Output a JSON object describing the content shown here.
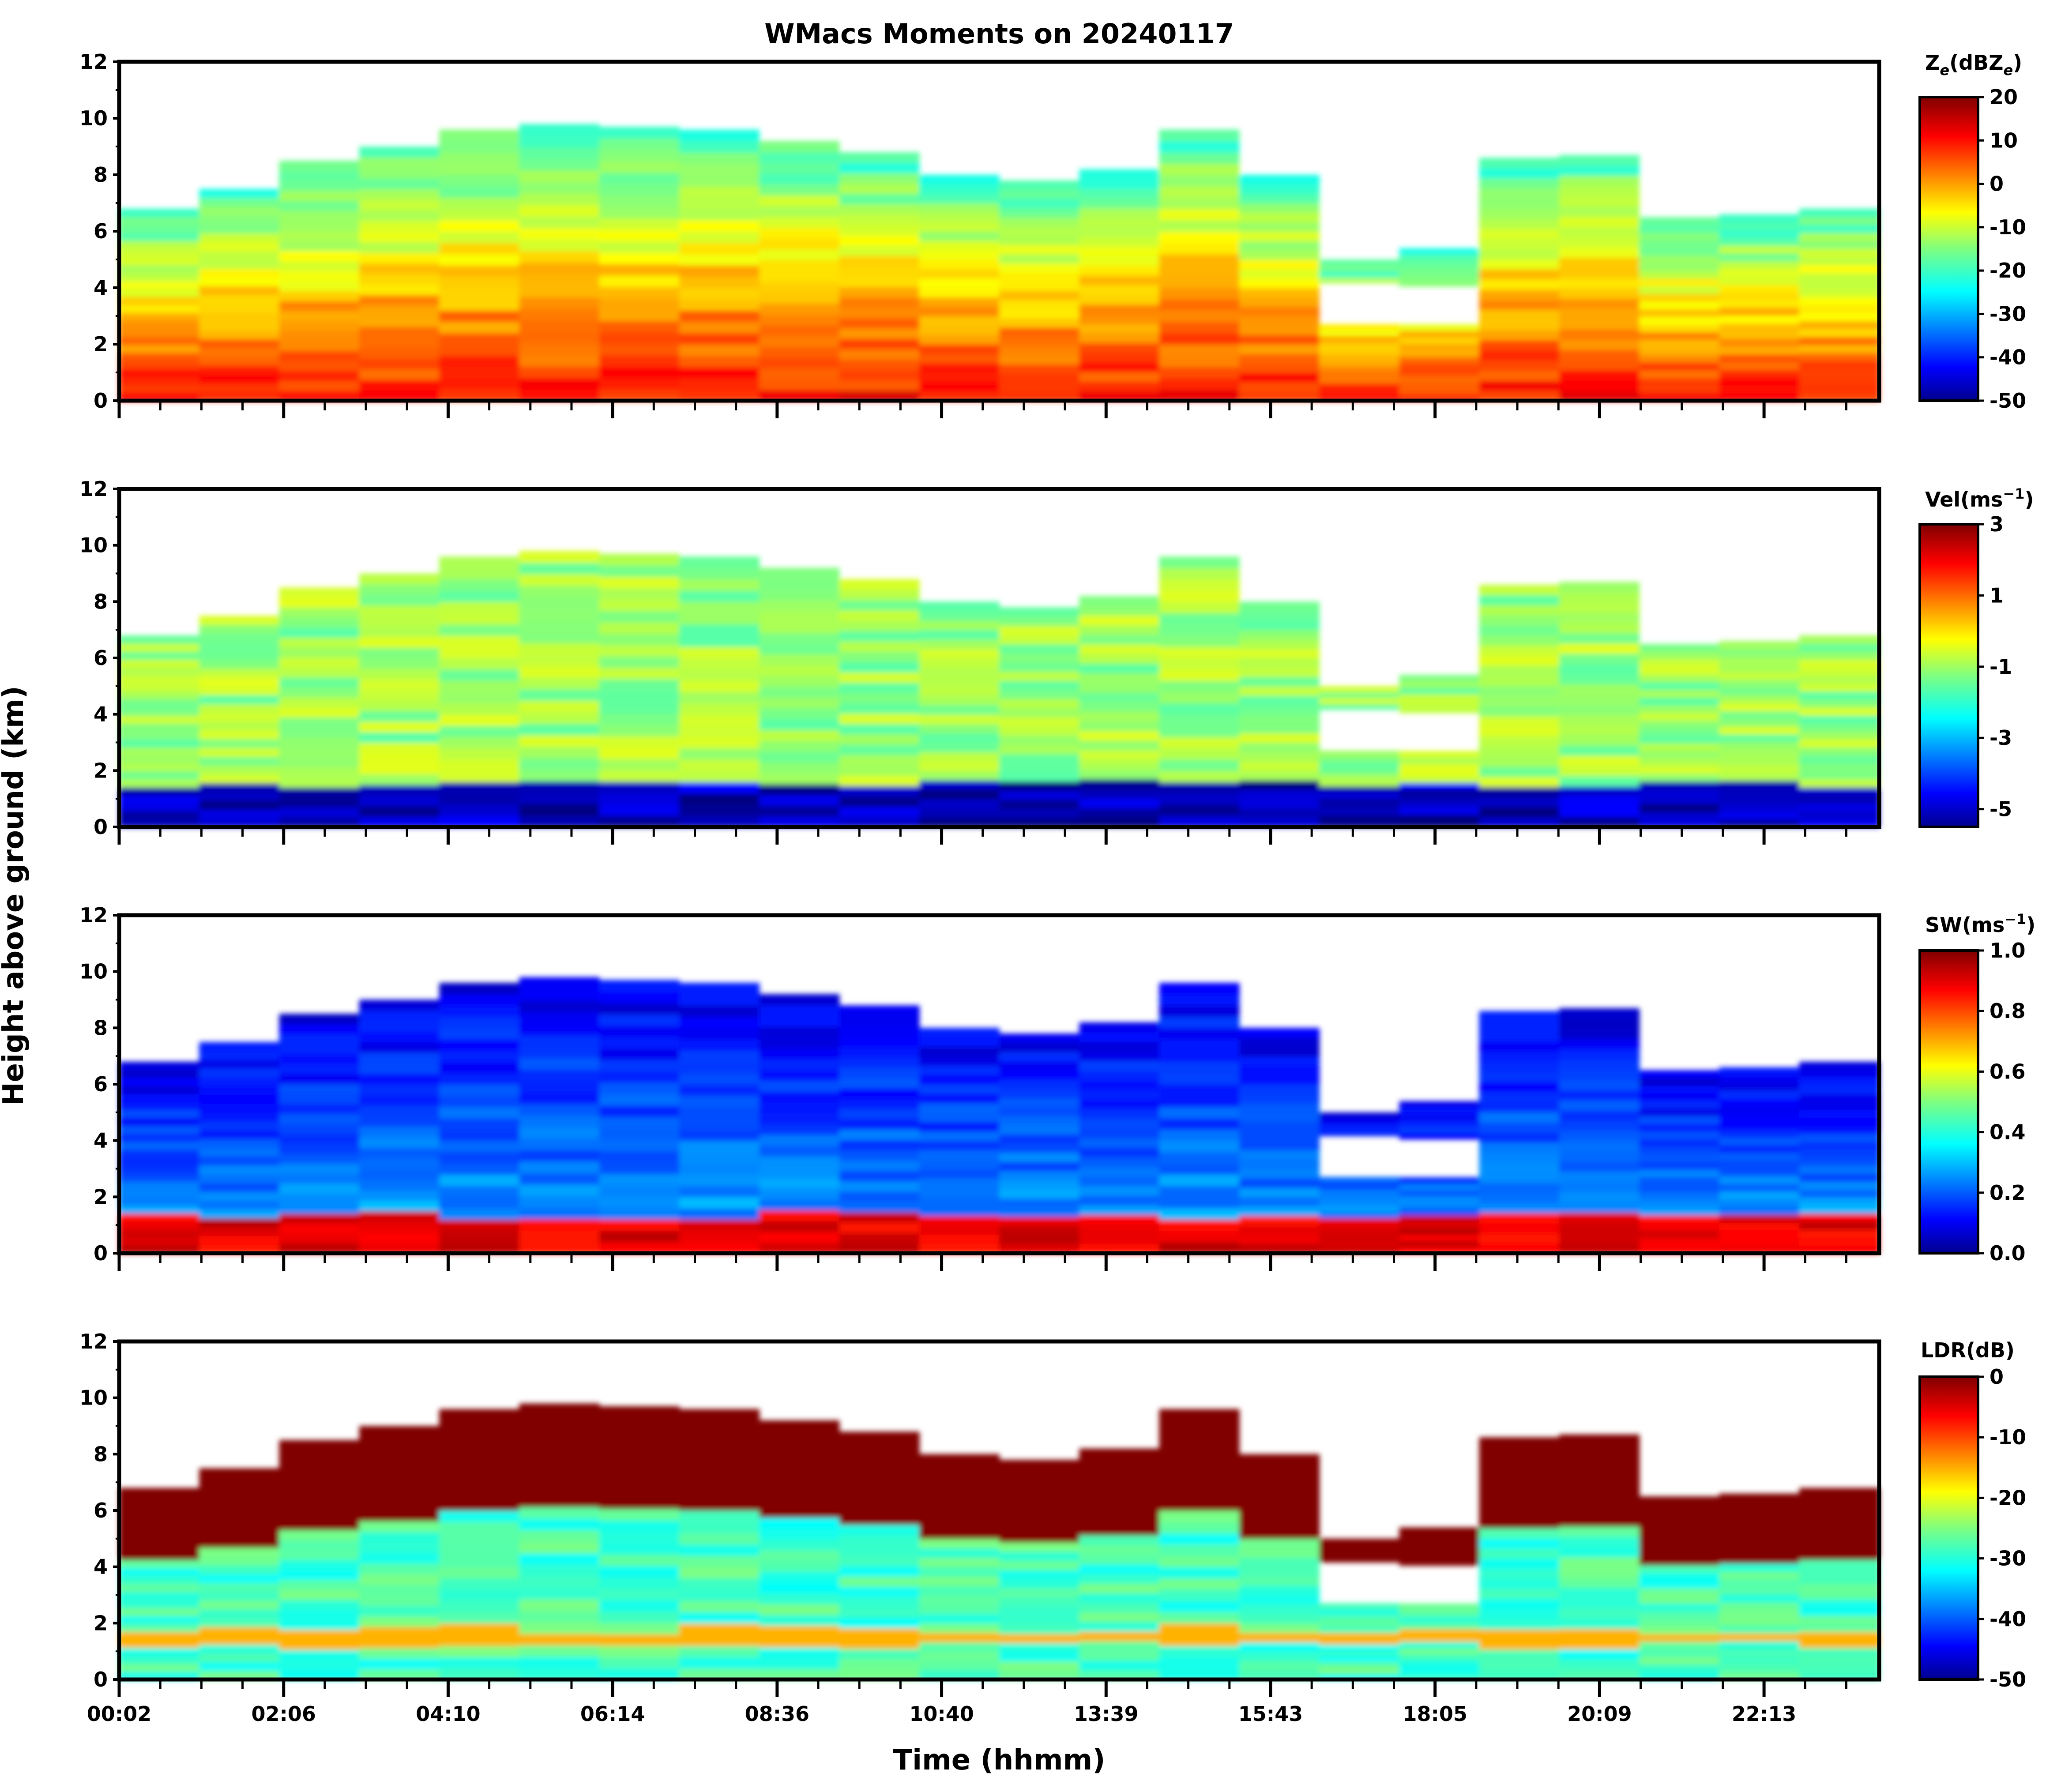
{
  "chart_data": {
    "type": "heatmap",
    "title": "WMacs Moments on 20240117",
    "xlabel": "Time (hhmm)",
    "ylabel": "Height above ground (km)",
    "x_tick_labels": [
      "00:02",
      "02:06",
      "04:10",
      "06:14",
      "08:36",
      "10:40",
      "13:39",
      "15:43",
      "18:05",
      "20:09",
      "22:13"
    ],
    "ylim": [
      0,
      12
    ],
    "y_ticks": [
      "0",
      "2",
      "4",
      "6",
      "8",
      "10",
      "12"
    ],
    "panels": [
      {
        "name": "reflectivity",
        "colorbar_label": "Ze(dBZe)",
        "unit_main": "Z",
        "unit_sub1": "e",
        "unit_mid": "(dBZ",
        "unit_sub2": "e",
        "unit_end": ")",
        "cmin": -50,
        "cmax": 20,
        "cticks": [
          "20",
          "10",
          "0",
          "-10",
          "-20",
          "-30",
          "-40",
          "-50"
        ],
        "cloud_top_km": [
          6.8,
          7.5,
          8.5,
          9.0,
          9.6,
          9.8,
          9.7,
          9.6,
          9.2,
          8.8,
          8.0,
          7.8,
          8.2,
          9.6,
          8.0,
          5.0,
          5.4,
          8.6,
          8.7,
          6.5,
          6.6,
          6.8
        ],
        "low_level_dbz": 10,
        "mid_level_dbz": 0,
        "upper_level_dbz": -20
      },
      {
        "name": "velocity",
        "colorbar_label": "Vel(ms-1)",
        "unit_main": "Vel(ms",
        "unit_sup": "−1",
        "unit_end": ")",
        "cmin": -5.5,
        "cmax": 3,
        "cticks": [
          "3",
          "1",
          "-1",
          "-3",
          "-5"
        ],
        "typical_ms": -1,
        "near_surface_ms": -5
      },
      {
        "name": "spectrum_width",
        "colorbar_label": "SW(ms-1)",
        "unit_main": "SW(ms",
        "unit_sup": "−1",
        "unit_end": ")",
        "cmin": 0,
        "cmax": 1,
        "cticks": [
          "1.0",
          "0.8",
          "0.6",
          "0.4",
          "0.2",
          "0.0"
        ],
        "typical_ms": 0.1,
        "near_surface_ms": 0.9
      },
      {
        "name": "ldr",
        "colorbar_label": "LDR(dB)",
        "unit_main": "LDR(dB)",
        "cmin": -50,
        "cmax": 0,
        "cticks": [
          "0",
          "-10",
          "-20",
          "-30",
          "-40",
          "-50"
        ],
        "cloud_top_db": 0,
        "interior_db": -28,
        "melting_layer_db": -15
      }
    ]
  }
}
